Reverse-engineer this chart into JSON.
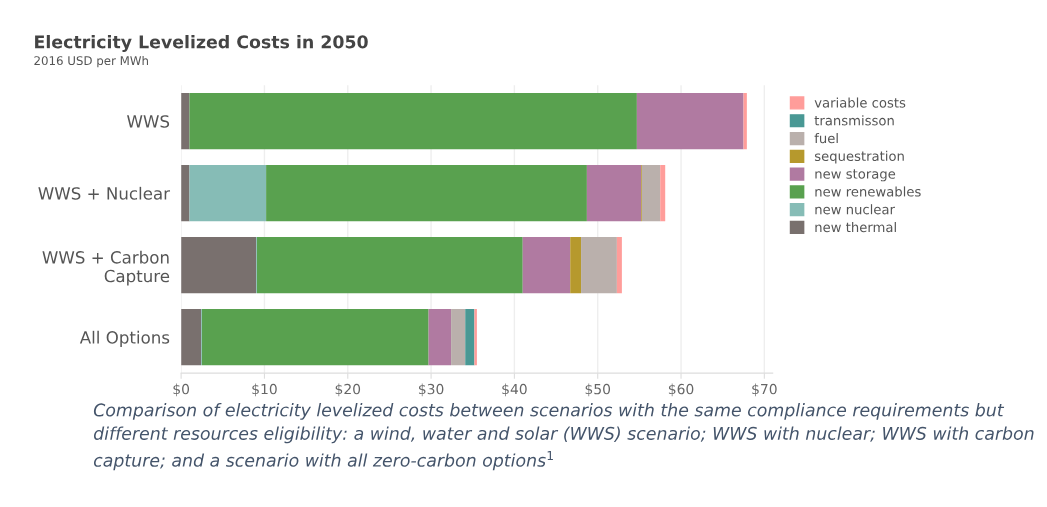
{
  "chart_data": {
    "type": "bar",
    "orientation": "horizontal",
    "stacked": true,
    "title": "Electricity Levelized Costs in 2050",
    "subtitle": "2016 USD per MWh",
    "categories": [
      "WWS",
      "WWS + Nuclear",
      "WWS + Carbon\nCapture",
      "All Options"
    ],
    "series": [
      {
        "name": "new thermal",
        "color": "#79706e",
        "values": [
          1.0,
          1.0,
          9.0,
          2.4
        ]
      },
      {
        "name": "new nuclear",
        "color": "#86bcb6",
        "values": [
          0,
          9.2,
          0.1,
          0.1
        ]
      },
      {
        "name": "new renewables",
        "color": "#59a14f",
        "values": [
          53.7,
          38.5,
          31.9,
          27.2
        ]
      },
      {
        "name": "new storage",
        "color": "#b07aa1",
        "values": [
          12.8,
          6.5,
          5.7,
          2.7
        ]
      },
      {
        "name": "sequestration",
        "color": "#b6992d",
        "values": [
          0,
          0.1,
          1.3,
          0
        ]
      },
      {
        "name": "fuel",
        "color": "#bab0ac",
        "values": [
          0,
          2.2,
          4.3,
          1.7
        ]
      },
      {
        "name": "transmisson",
        "color": "#499894",
        "values": [
          0,
          0,
          0,
          1.1
        ]
      },
      {
        "name": "variable costs",
        "color": "#ff9d9a",
        "values": [
          0.4,
          0.6,
          0.6,
          0.3
        ]
      }
    ],
    "xlim": [
      0,
      71
    ],
    "xticks": [
      {
        "value": 0,
        "label": "$0"
      },
      {
        "value": 10,
        "label": "$10"
      },
      {
        "value": 20,
        "label": "$20"
      },
      {
        "value": 30,
        "label": "$30"
      },
      {
        "value": 40,
        "label": "$40"
      },
      {
        "value": 50,
        "label": "$50"
      },
      {
        "value": 60,
        "label": "$60"
      },
      {
        "value": 70,
        "label": "$70"
      }
    ],
    "grid": "x",
    "legend": "right",
    "annotations": [
      "Comparison of electricity levelized costs between scenarios with the same compliance requirements but different resources eligibility: a wind, water and solar (WWS) scenario; WWS with nuclear; WWS with carbon capture; and a scenario with all zero-carbon options$^{1}$"
    ]
  }
}
